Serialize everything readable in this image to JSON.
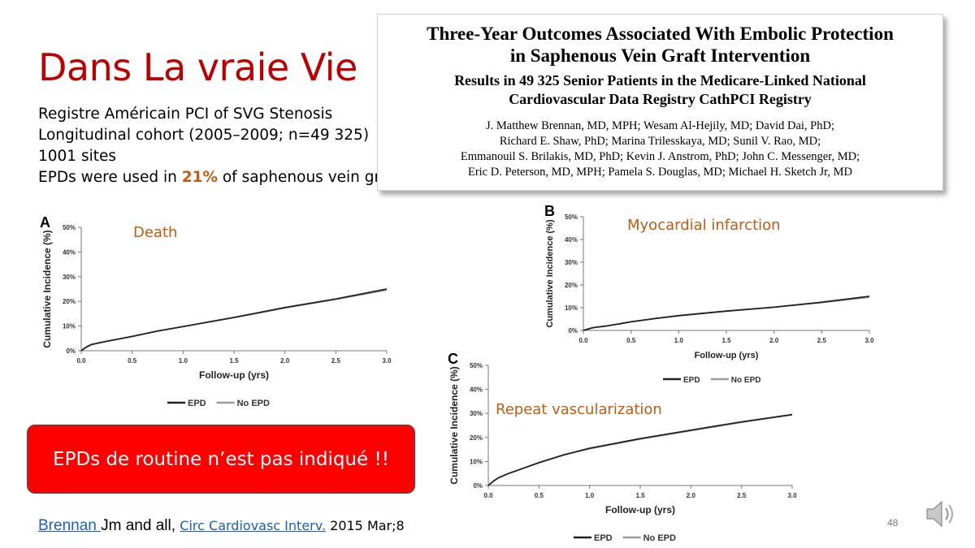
{
  "slide": {
    "title": "Dans La vraie Vie",
    "bullets": [
      "Registre Américain PCI of SVG Stenosis",
      "Longitudinal cohort (2005–2009; n=49 325)",
      "1001 sites"
    ],
    "last_bullet": {
      "prefix": "EPDs were used in ",
      "highlight": "21%",
      "suffix": " of saphenous vein grafts"
    },
    "alert": "EPDs de routine n’est pas indiqué !!",
    "citation": {
      "author": "Brennan ",
      "rest": "Jm and all",
      "sep": ", ",
      "journal": " Circ Cardiovasc Interv.",
      "date": " 2015 Mar;8"
    },
    "page_number": "48",
    "speaker_icon": "speaker-icon",
    "colors": {
      "title": "#c00000",
      "highlight": "#c55a11",
      "alert_bg": "#ff0000",
      "link": "#1a5fbf"
    }
  },
  "paper": {
    "title_line1": "Three-Year Outcomes Associated With Embolic Protection",
    "title_line2": "in Saphenous Vein Graft Intervention",
    "subtitle_line1": "Results in 49 325 Senior Patients in the Medicare-Linked National",
    "subtitle_line2": "Cardiovascular Data Registry CathPCI Registry",
    "authors": [
      "J. Matthew Brennan, MD, MPH; Wesam Al-Hejily, MD; David Dai, PhD;",
      "Richard E. Shaw, PhD; Marina Trilesskaya, MD; Sunil V. Rao, MD;",
      "Emmanouil S. Brilakis, MD, PhD; Kevin J. Anstrom, PhD; John C. Messenger, MD;",
      "Eric D. Peterson, MD, MPH; Pamela S. Douglas, MD; Michael H. Sketch Jr, MD"
    ]
  },
  "chart_data": [
    {
      "type": "line",
      "panel": "A",
      "label": "Death",
      "xlabel": "Follow-up (yrs)",
      "ylabel": "Cumulative Incidence (%)",
      "xlim": [
        0,
        3.0
      ],
      "ylim": [
        0,
        50
      ],
      "x_ticks": [
        "0.0",
        "0.5",
        "1.0",
        "1.5",
        "2.0",
        "2.5",
        "3.0"
      ],
      "y_ticks": [
        "0%",
        "10%",
        "20%",
        "30%",
        "40%",
        "50%"
      ],
      "legend": "bottom",
      "x": [
        0,
        0.05,
        0.1,
        0.25,
        0.5,
        0.75,
        1.0,
        1.5,
        2.0,
        2.5,
        3.0
      ],
      "series": [
        {
          "name": "EPD",
          "color": "#222222",
          "values": [
            0,
            1.5,
            2.5,
            3.8,
            5.8,
            8.0,
            9.8,
            13.5,
            17.5,
            21.0,
            25.0
          ]
        },
        {
          "name": "No EPD",
          "color": "#9a9a9a",
          "values": [
            0,
            1.5,
            2.5,
            3.8,
            5.8,
            8.0,
            9.8,
            13.4,
            17.3,
            20.8,
            24.6
          ]
        }
      ]
    },
    {
      "type": "line",
      "panel": "B",
      "label": "Myocardial infarction",
      "xlabel": "Follow-up (yrs)",
      "ylabel": "Cumulative Incidence (%)",
      "xlim": [
        0,
        3.0
      ],
      "ylim": [
        0,
        50
      ],
      "x_ticks": [
        "0.0",
        "0.5",
        "1.0",
        "1.5",
        "2.0",
        "2.5",
        "3.0"
      ],
      "y_ticks": [
        "0%",
        "10%",
        "20%",
        "30%",
        "40%",
        "50%"
      ],
      "legend": "bottom",
      "x": [
        0,
        0.05,
        0.1,
        0.25,
        0.5,
        0.75,
        1.0,
        1.5,
        2.0,
        2.5,
        3.0
      ],
      "series": [
        {
          "name": "EPD",
          "color": "#222222",
          "values": [
            0,
            0.6,
            1.2,
            2.0,
            3.8,
            5.2,
            6.5,
            8.5,
            10.2,
            12.4,
            15.0
          ]
        },
        {
          "name": "No EPD",
          "color": "#9a9a9a",
          "values": [
            0,
            0.6,
            1.2,
            2.0,
            3.8,
            5.2,
            6.5,
            8.5,
            10.2,
            12.3,
            14.6
          ]
        }
      ]
    },
    {
      "type": "line",
      "panel": "C",
      "label": "Repeat vascularization",
      "xlabel": "Follow-up (yrs)",
      "ylabel": "Cumulative Incidence (%)",
      "xlim": [
        0,
        3.0
      ],
      "ylim": [
        0,
        50
      ],
      "x_ticks": [
        "0.0",
        "0.5",
        "1.0",
        "1.5",
        "2.0",
        "2.5",
        "3.0"
      ],
      "y_ticks": [
        "0%",
        "10%",
        "20%",
        "30%",
        "40%",
        "50%"
      ],
      "legend": "bottom",
      "x": [
        0,
        0.05,
        0.1,
        0.2,
        0.3,
        0.5,
        0.75,
        1.0,
        1.5,
        2.0,
        2.5,
        3.0
      ],
      "series": [
        {
          "name": "EPD",
          "color": "#222222",
          "values": [
            0,
            1.8,
            3.2,
            5.0,
            6.5,
            9.5,
            12.8,
            15.5,
            19.5,
            23.0,
            26.5,
            29.5
          ]
        },
        {
          "name": "No EPD",
          "color": "#9a9a9a",
          "values": [
            0,
            1.8,
            3.2,
            5.0,
            6.5,
            9.5,
            12.8,
            15.3,
            19.3,
            22.8,
            26.3,
            29.5
          ]
        }
      ]
    }
  ]
}
